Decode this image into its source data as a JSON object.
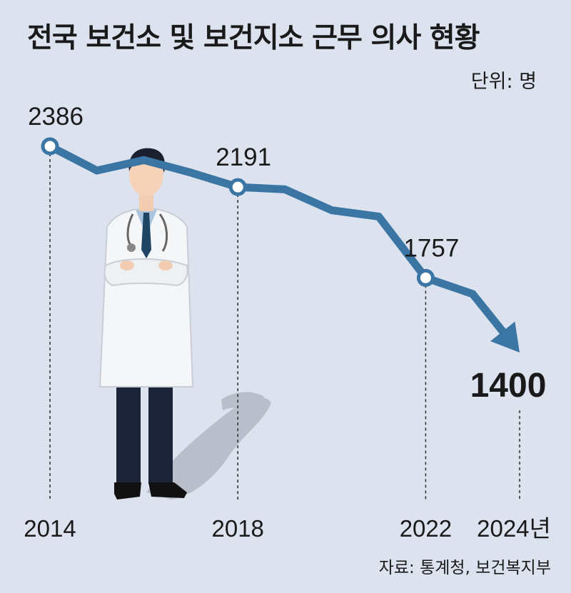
{
  "title": "전국 보건소 및 보건지소 근무 의사 현황",
  "unit_label": "단위: 명",
  "source": "자료: 통계청, 보건복지부",
  "chart_data": {
    "type": "line",
    "title": "전국 보건소 및 보건지소 근무 의사 현황",
    "xlabel": "",
    "ylabel": "",
    "unit": "명",
    "x": [
      2014,
      2015,
      2016,
      2017,
      2018,
      2019,
      2020,
      2021,
      2022,
      2023,
      2024
    ],
    "values": [
      2386,
      2270,
      2320,
      2260,
      2191,
      2180,
      2080,
      2050,
      1757,
      1680,
      1400
    ],
    "ylim": [
      1300,
      2450
    ],
    "labeled_points": [
      {
        "x": 2014,
        "label": "2386"
      },
      {
        "x": 2018,
        "label": "2191"
      },
      {
        "x": 2022,
        "label": "1757"
      },
      {
        "x": 2024,
        "label": "1400"
      }
    ],
    "tick_labels": [
      "2014",
      "2018",
      "2022",
      "2024년"
    ],
    "tick_x": [
      2014,
      2018,
      2022,
      2024
    ],
    "line_color": "#3a75a4",
    "background_color": "#dce3ef",
    "illustration": "doctor-illustration"
  }
}
